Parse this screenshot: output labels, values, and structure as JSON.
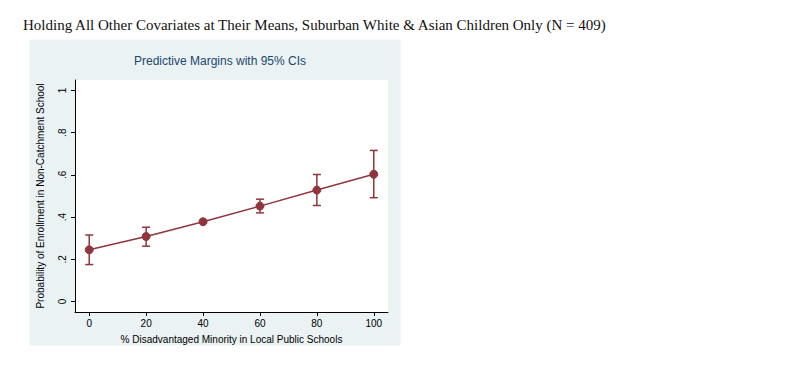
{
  "chart_data": {
    "type": "line",
    "title": "Holding All Other Covariates at Their Means, Suburban White & Asian Children Only (N = 409)",
    "subtitle": "Predictive Margins with 95% CIs",
    "x_label": "% Disadvantaged Minority in Local Public Schools",
    "y_label": "Probability of Enrollment in Non-Catchment School",
    "x": [
      0,
      20,
      40,
      60,
      80,
      100
    ],
    "values": [
      0.245,
      0.308,
      0.378,
      0.452,
      0.528,
      0.603
    ],
    "ci_low": [
      0.175,
      0.262,
      0.372,
      0.42,
      0.455,
      0.492
    ],
    "ci_high": [
      0.315,
      0.352,
      0.384,
      0.485,
      0.602,
      0.716
    ],
    "color": "#90353b",
    "marker": "circle",
    "xlim": [
      -5,
      105
    ],
    "xticks": [
      0,
      20,
      40,
      60,
      80,
      100
    ],
    "ylim": [
      -0.05,
      1.05
    ],
    "yticks": [
      0,
      {
        "value": 0.2,
        "label": ".2"
      },
      {
        "value": 0.4,
        "label": ".4"
      },
      {
        "value": 0.6,
        "label": ".6"
      },
      {
        "value": 0.8,
        "label": ".8"
      },
      1
    ],
    "grid": false
  }
}
